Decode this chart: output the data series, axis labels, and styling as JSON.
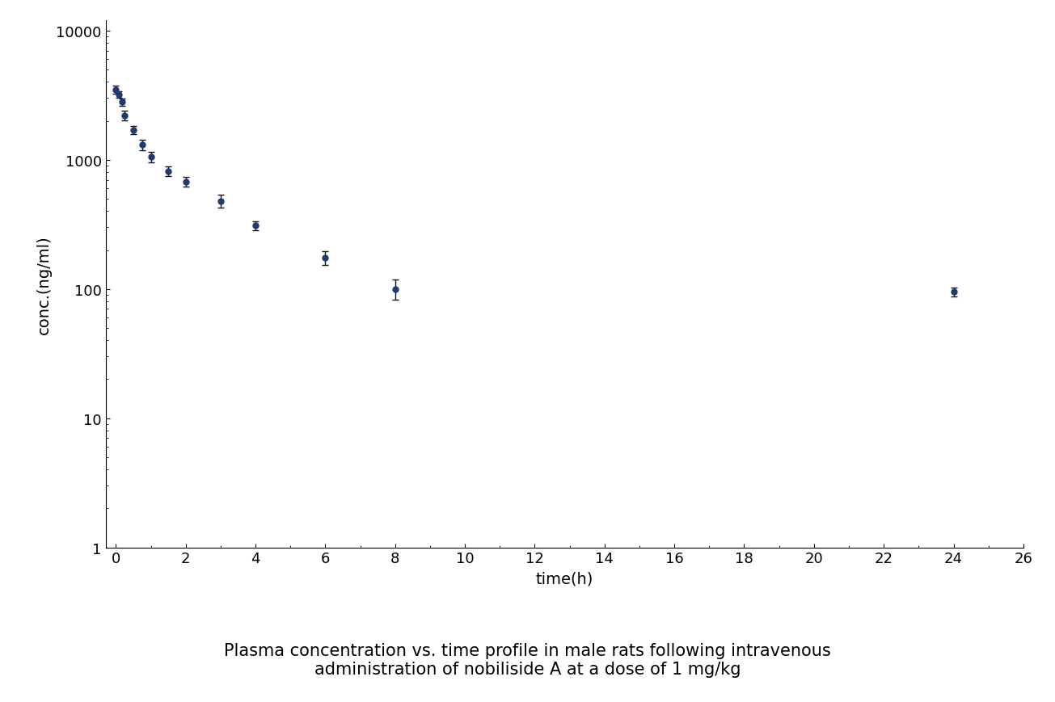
{
  "x": [
    0.0,
    0.083,
    0.167,
    0.25,
    0.5,
    0.75,
    1.0,
    1.5,
    2.0,
    3.0,
    4.0,
    6.0,
    8.0,
    24.0
  ],
  "y": [
    3500,
    3200,
    2800,
    2200,
    1700,
    1300,
    1050,
    820,
    680,
    480,
    310,
    175,
    100,
    95
  ],
  "yerr": [
    250,
    180,
    180,
    180,
    130,
    120,
    100,
    70,
    60,
    55,
    25,
    22,
    18,
    7
  ],
  "line_color": "#1e3a6e",
  "marker_color": "#1e3a6e",
  "marker": "o",
  "markersize": 5,
  "linewidth": 1.5,
  "xlabel": "time(h)",
  "ylabel": "conc.(ng/ml)",
  "xlim": [
    -0.3,
    26
  ],
  "xticks": [
    0,
    2,
    4,
    6,
    8,
    10,
    12,
    14,
    16,
    18,
    20,
    22,
    24,
    26
  ],
  "ylim": [
    1,
    12000
  ],
  "yticks": [
    1,
    10,
    100,
    1000,
    10000
  ],
  "ytick_labels": [
    "1",
    "10",
    "100",
    "1000",
    "10000"
  ],
  "title_line1": "Plasma concentration vs. time profile in male rats following intravenous",
  "title_line2": "administration of nobiliside A at a dose of 1 mg/kg",
  "title_fontsize": 15,
  "axis_fontsize": 14,
  "tick_fontsize": 13,
  "background_color": "#ffffff",
  "capsize": 3,
  "elinewidth": 1.0,
  "ecolor": "#111111"
}
